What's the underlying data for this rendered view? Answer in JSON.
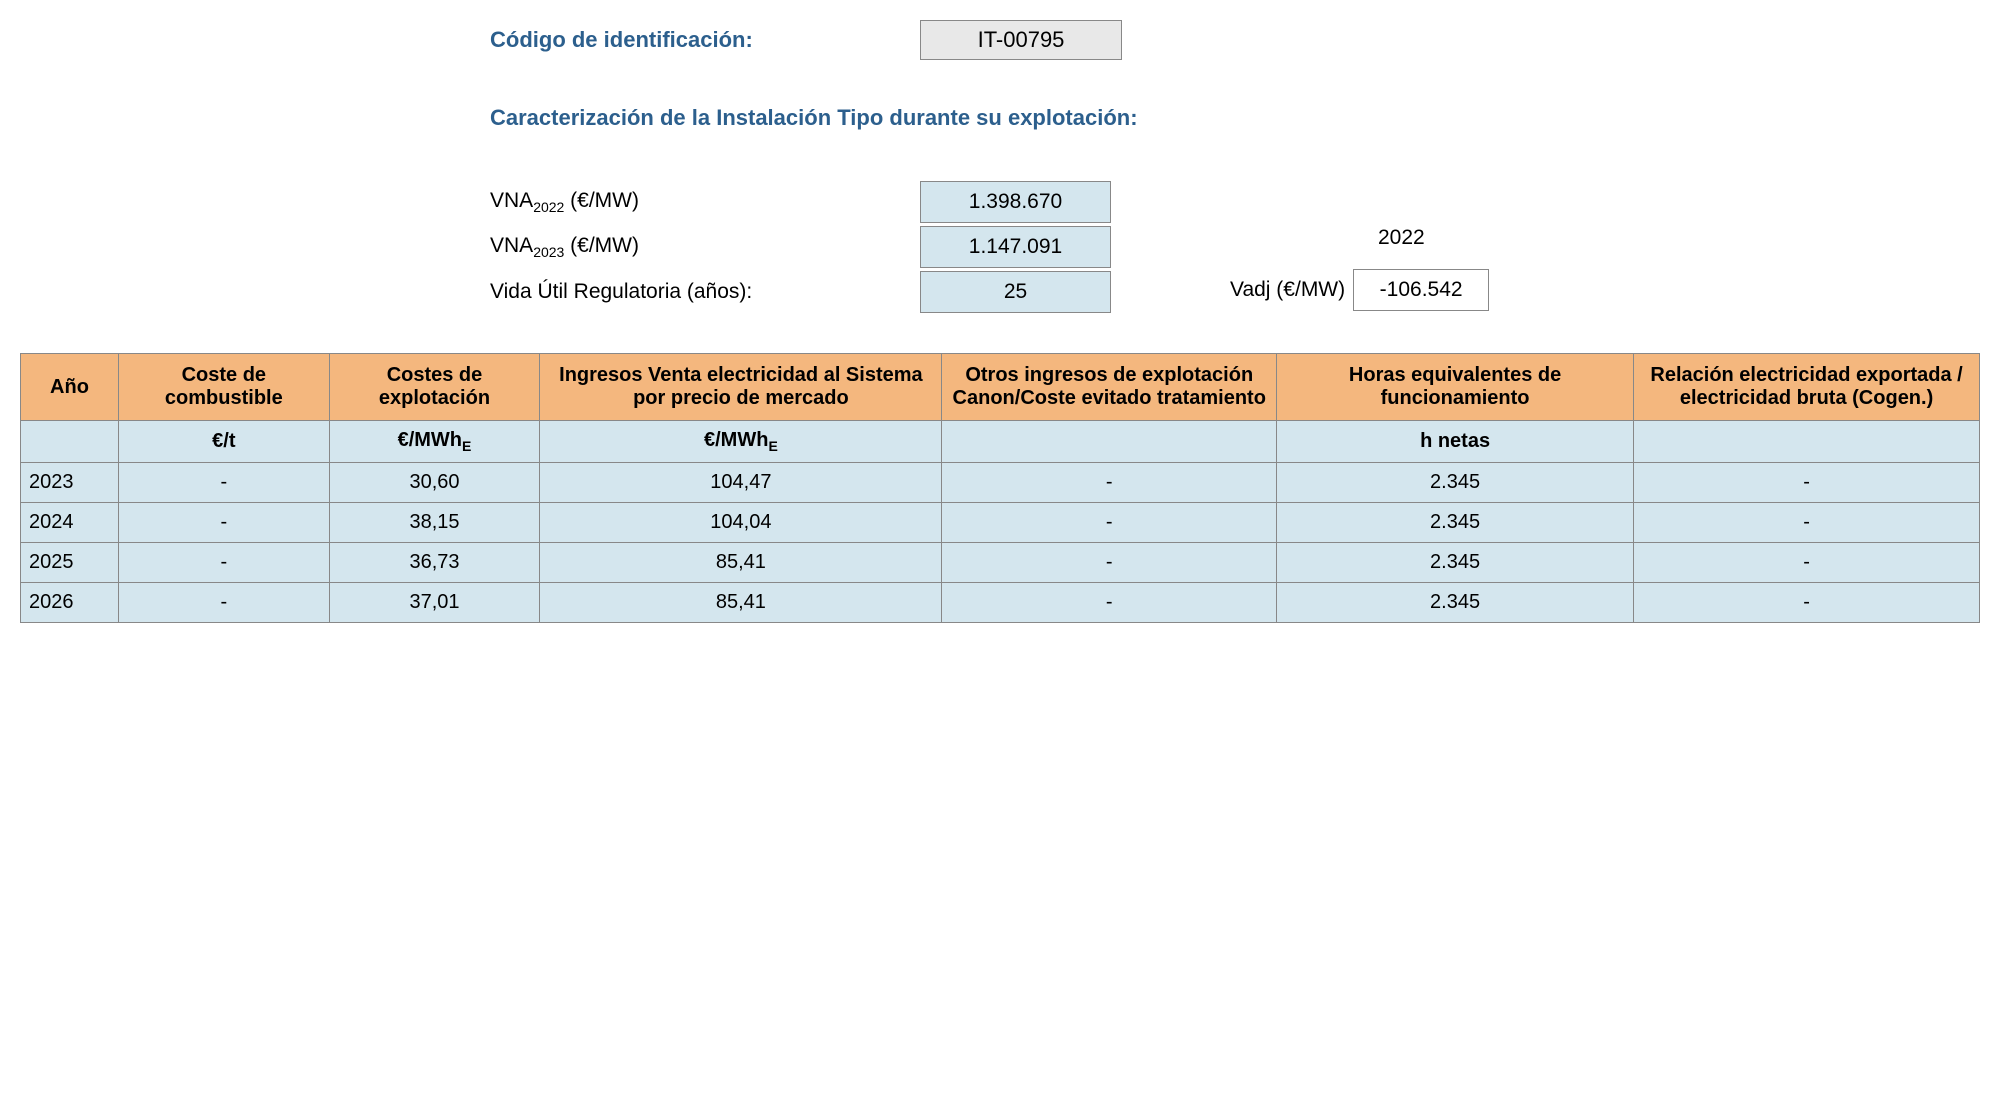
{
  "header": {
    "id_label": "Código de identificación:",
    "id_value": "IT-00795",
    "section_title": "Caracterización de la Instalación Tipo durante su explotación:"
  },
  "params": {
    "vna2022_label_prefix": "VNA",
    "vna2022_sub": "2022",
    "vna2022_unit": " (€/MW)",
    "vna2022_value": "1.398.670",
    "vna2023_label_prefix": "VNA",
    "vna2023_sub": "2023",
    "vna2023_unit": " (€/MW)",
    "vna2023_value": "1.147.091",
    "vida_label": "Vida Útil Regulatoria (años):",
    "vida_value": "25",
    "year_label": "2022",
    "vadj_label": "Vadj (€/MW)",
    "vadj_value": "-106.542"
  },
  "table": {
    "headers": {
      "ano": "Año",
      "combustible": "Coste de combustible",
      "costes": "Costes de explotación",
      "ingresos": "Ingresos Venta electricidad al Sistema por precio de mercado",
      "otros": "Otros ingresos de explotación Canon/Coste evitado tratamiento",
      "horas": "Horas equivalentes de funcionamiento",
      "relacion": "Relación electricidad exportada / electricidad bruta (Cogen.)"
    },
    "units": {
      "ano": "",
      "combustible": "€/t",
      "costes_prefix": "€/MWh",
      "costes_sub": "E",
      "ingresos_prefix": "€/MWh",
      "ingresos_sub": "E",
      "otros": "",
      "horas": "h netas",
      "relacion": ""
    },
    "rows": [
      {
        "ano": "2023",
        "combustible": "-",
        "costes": "30,60",
        "ingresos": "104,47",
        "otros": "-",
        "horas": "2.345",
        "relacion": "-"
      },
      {
        "ano": "2024",
        "combustible": "-",
        "costes": "38,15",
        "ingresos": "104,04",
        "otros": "-",
        "horas": "2.345",
        "relacion": "-"
      },
      {
        "ano": "2025",
        "combustible": "-",
        "costes": "36,73",
        "ingresos": "85,41",
        "otros": "-",
        "horas": "2.345",
        "relacion": "-"
      },
      {
        "ano": "2026",
        "combustible": "-",
        "costes": "37,01",
        "ingresos": "85,41",
        "otros": "-",
        "horas": "2.345",
        "relacion": "-"
      }
    ]
  },
  "colors": {
    "header_bg": "#f4b77e",
    "cell_bg": "#d4e6ee",
    "title_color": "#2c5f8d",
    "border_color": "#888888",
    "id_box_bg": "#e8e8e8"
  }
}
